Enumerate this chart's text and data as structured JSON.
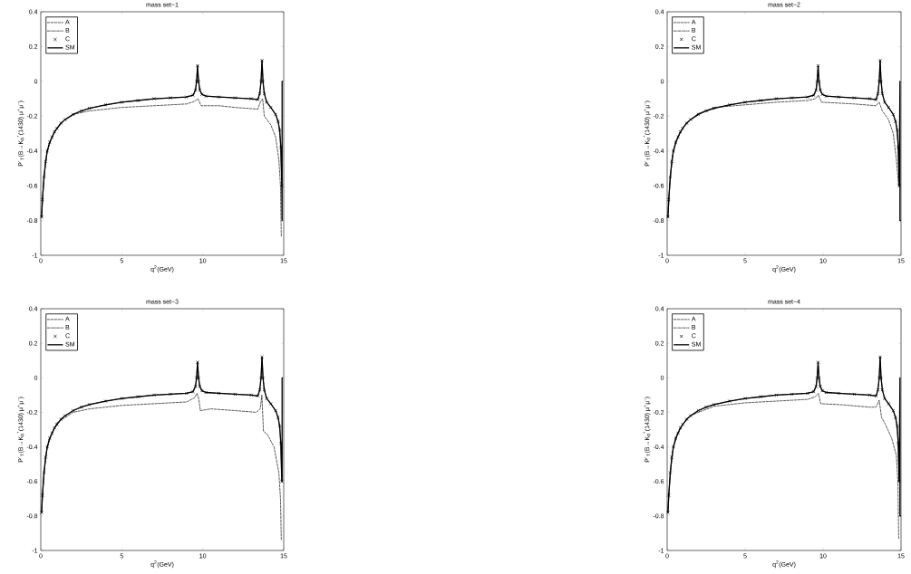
{
  "chart_data": [
    {
      "type": "line",
      "title": "mass set−1",
      "xlabel": "q$^{2}$(GeV)",
      "ylabel": "P$^{-}$$_{T}$(B→K$_{0}$$^{*}$(1430) μ$^{+}$μ$^{-}$)",
      "xlim": [
        0,
        15
      ],
      "ylim": [
        -1,
        0.4
      ],
      "xticks": [
        0,
        5,
        10,
        15
      ],
      "yticks": [
        -1,
        -0.8,
        -0.6,
        -0.4,
        -0.2,
        0,
        0.2,
        0.4
      ],
      "legend": "top left",
      "series": [
        {
          "name": "A",
          "type": "line",
          "line_style": "dashed",
          "color": "#000000",
          "x": [
            0.05,
            0.2,
            0.4,
            0.7,
            1,
            1.5,
            2,
            3,
            5,
            7,
            9,
            9.5,
            9.7,
            9.9,
            11,
            12,
            13.4,
            13.55,
            13.7,
            13.8,
            14.2,
            14.5,
            14.7,
            14.8,
            14.85
          ],
          "values": [
            -0.78,
            -0.55,
            -0.4,
            -0.32,
            -0.27,
            -0.22,
            -0.19,
            -0.17,
            -0.15,
            -0.14,
            -0.13,
            -0.115,
            -0.1,
            -0.14,
            -0.14,
            -0.15,
            -0.16,
            -0.12,
            -0.1,
            -0.2,
            -0.25,
            -0.32,
            -0.45,
            -0.6,
            -0.89
          ]
        },
        {
          "name": "B",
          "type": "line",
          "line_style": "dashdot",
          "color": "#000000",
          "x": [
            0.05,
            0.1,
            0.2,
            0.3,
            0.4,
            0.55,
            0.7,
            0.85,
            1,
            1.25,
            1.5,
            2,
            2.5,
            3,
            4,
            5,
            6,
            7,
            8,
            9,
            9.4,
            9.55,
            9.62,
            9.68,
            9.74,
            9.82,
            9.95,
            10.2,
            11,
            12,
            13,
            13.4,
            13.52,
            13.6,
            13.66,
            13.72,
            13.8,
            13.95,
            14.2,
            14.5,
            14.65,
            14.75,
            14.82,
            14.88
          ],
          "values": [
            -0.78,
            -0.68,
            -0.55,
            -0.46,
            -0.4,
            -0.35,
            -0.32,
            -0.29,
            -0.27,
            -0.24,
            -0.22,
            -0.19,
            -0.17,
            -0.155,
            -0.135,
            -0.12,
            -0.11,
            -0.1,
            -0.095,
            -0.09,
            -0.08,
            -0.05,
            0.0,
            0.09,
            0.0,
            -0.05,
            -0.075,
            -0.085,
            -0.09,
            -0.095,
            -0.1,
            -0.105,
            -0.07,
            0.0,
            0.12,
            0.0,
            -0.07,
            -0.12,
            -0.15,
            -0.19,
            -0.23,
            -0.28,
            -0.38,
            -0.6
          ]
        },
        {
          "name": "C",
          "type": "scatter",
          "marker": "cross",
          "color": "#000000",
          "x": [
            0.05,
            0.1,
            0.2,
            0.3,
            0.4,
            0.55,
            0.7,
            0.85,
            1,
            1.25,
            1.5,
            2,
            2.5,
            3,
            4,
            5,
            6,
            7,
            8,
            9,
            9.4,
            9.55,
            9.62,
            9.68,
            9.74,
            9.82,
            9.95,
            10.2,
            11,
            12,
            13,
            13.4,
            13.52,
            13.6,
            13.66,
            13.72,
            13.8,
            13.95,
            14.2,
            14.5,
            14.65,
            14.75,
            14.82,
            14.88
          ],
          "values": [
            -0.78,
            -0.68,
            -0.55,
            -0.46,
            -0.4,
            -0.35,
            -0.32,
            -0.29,
            -0.27,
            -0.24,
            -0.22,
            -0.19,
            -0.17,
            -0.155,
            -0.135,
            -0.12,
            -0.11,
            -0.1,
            -0.095,
            -0.09,
            -0.08,
            -0.05,
            0.0,
            0.09,
            0.0,
            -0.05,
            -0.075,
            -0.085,
            -0.09,
            -0.095,
            -0.1,
            -0.105,
            -0.07,
            0.0,
            0.12,
            0.0,
            -0.07,
            -0.12,
            -0.15,
            -0.19,
            -0.23,
            -0.28,
            -0.38,
            -0.6
          ]
        },
        {
          "name": "SM",
          "type": "line",
          "line_style": "solid",
          "color": "#000000",
          "x": [
            0.05,
            0.1,
            0.2,
            0.3,
            0.4,
            0.55,
            0.7,
            0.85,
            1,
            1.25,
            1.5,
            2,
            2.5,
            3,
            4,
            5,
            6,
            7,
            8,
            9,
            9.4,
            9.55,
            9.62,
            9.68,
            9.74,
            9.82,
            9.95,
            10.2,
            11,
            12,
            13,
            13.4,
            13.52,
            13.6,
            13.66,
            13.72,
            13.8,
            13.95,
            14.2,
            14.5,
            14.65,
            14.75,
            14.82,
            14.88,
            14.9,
            14.9,
            14.95
          ],
          "values": [
            -0.78,
            -0.68,
            -0.55,
            -0.46,
            -0.4,
            -0.35,
            -0.32,
            -0.29,
            -0.27,
            -0.24,
            -0.22,
            -0.19,
            -0.17,
            -0.155,
            -0.135,
            -0.12,
            -0.11,
            -0.1,
            -0.095,
            -0.09,
            -0.08,
            -0.05,
            0.0,
            0.09,
            0.0,
            -0.05,
            -0.075,
            -0.085,
            -0.09,
            -0.095,
            -0.1,
            -0.105,
            -0.07,
            0.0,
            0.12,
            0.0,
            -0.07,
            -0.12,
            -0.15,
            -0.19,
            -0.23,
            -0.28,
            -0.38,
            -0.6,
            -0.8,
            0,
            0
          ]
        }
      ]
    },
    {
      "type": "line",
      "title": "mass set−2",
      "xlabel": "q$^{2}$(GeV)",
      "ylabel": "P$^{-}$$_{T}$(B→K$_{0}$$^{*}$(1430) μ$^{+}$μ$^{-}$)",
      "xlim": [
        0,
        15
      ],
      "ylim": [
        -1,
        0.4
      ],
      "xticks": [
        0,
        5,
        10,
        15
      ],
      "yticks": [
        -1,
        -0.8,
        -0.6,
        -0.4,
        -0.2,
        0,
        0.2,
        0.4
      ],
      "legend": "top left",
      "series": [
        {
          "name": "A",
          "type": "line",
          "line_style": "dashed",
          "color": "#000000",
          "x": [
            0.05,
            0.2,
            0.4,
            0.7,
            1,
            1.5,
            2,
            3,
            5,
            7,
            9,
            9.5,
            9.7,
            9.9,
            11,
            12,
            13.4,
            13.6,
            13.8,
            14.2,
            14.5,
            14.7,
            14.85
          ],
          "values": [
            -0.78,
            -0.55,
            -0.4,
            -0.32,
            -0.27,
            -0.22,
            -0.185,
            -0.15,
            -0.135,
            -0.12,
            -0.11,
            -0.1,
            -0.08,
            -0.12,
            -0.125,
            -0.13,
            -0.14,
            -0.12,
            -0.17,
            -0.22,
            -0.3,
            -0.45,
            -0.6
          ]
        },
        {
          "name": "B",
          "type": "line",
          "line_style": "dashdot",
          "color": "#000000",
          "x": [
            0.05,
            0.1,
            0.2,
            0.3,
            0.4,
            0.55,
            0.7,
            0.85,
            1,
            1.25,
            1.5,
            2,
            2.5,
            3,
            4,
            5,
            6,
            7,
            8,
            9,
            9.4,
            9.55,
            9.62,
            9.68,
            9.74,
            9.82,
            9.95,
            10.2,
            11,
            12,
            13,
            13.4,
            13.52,
            13.6,
            13.66,
            13.72,
            13.8,
            13.95,
            14.2,
            14.5,
            14.65,
            14.75,
            14.82,
            14.88
          ],
          "values": [
            -0.78,
            -0.68,
            -0.55,
            -0.46,
            -0.4,
            -0.35,
            -0.32,
            -0.29,
            -0.27,
            -0.24,
            -0.22,
            -0.19,
            -0.17,
            -0.155,
            -0.135,
            -0.12,
            -0.11,
            -0.1,
            -0.095,
            -0.09,
            -0.08,
            -0.05,
            0.0,
            0.09,
            0.0,
            -0.05,
            -0.075,
            -0.085,
            -0.09,
            -0.095,
            -0.1,
            -0.105,
            -0.07,
            0.0,
            0.12,
            0.0,
            -0.07,
            -0.12,
            -0.15,
            -0.19,
            -0.23,
            -0.28,
            -0.38,
            -0.6
          ]
        },
        {
          "name": "C",
          "type": "scatter",
          "marker": "cross",
          "color": "#000000",
          "x": [
            0.05,
            0.1,
            0.2,
            0.3,
            0.4,
            0.55,
            0.7,
            0.85,
            1,
            1.25,
            1.5,
            2,
            2.5,
            3,
            4,
            5,
            6,
            7,
            8,
            9,
            9.4,
            9.55,
            9.62,
            9.68,
            9.74,
            9.82,
            9.95,
            10.2,
            11,
            12,
            13,
            13.4,
            13.52,
            13.6,
            13.66,
            13.72,
            13.8,
            13.95,
            14.2,
            14.5,
            14.65,
            14.75,
            14.82,
            14.88
          ],
          "values": [
            -0.78,
            -0.68,
            -0.55,
            -0.46,
            -0.4,
            -0.35,
            -0.32,
            -0.29,
            -0.27,
            -0.24,
            -0.22,
            -0.19,
            -0.17,
            -0.155,
            -0.135,
            -0.12,
            -0.11,
            -0.1,
            -0.095,
            -0.09,
            -0.08,
            -0.05,
            0.0,
            0.09,
            0.0,
            -0.05,
            -0.075,
            -0.085,
            -0.09,
            -0.095,
            -0.1,
            -0.105,
            -0.07,
            0.0,
            0.12,
            0.0,
            -0.07,
            -0.12,
            -0.15,
            -0.19,
            -0.23,
            -0.28,
            -0.38,
            -0.6
          ]
        },
        {
          "name": "SM",
          "type": "line",
          "line_style": "solid",
          "color": "#000000",
          "x": [
            0.05,
            0.1,
            0.2,
            0.3,
            0.4,
            0.55,
            0.7,
            0.85,
            1,
            1.25,
            1.5,
            2,
            2.5,
            3,
            4,
            5,
            6,
            7,
            8,
            9,
            9.4,
            9.55,
            9.62,
            9.68,
            9.74,
            9.82,
            9.95,
            10.2,
            11,
            12,
            13,
            13.4,
            13.52,
            13.6,
            13.66,
            13.72,
            13.8,
            13.95,
            14.2,
            14.5,
            14.65,
            14.75,
            14.82,
            14.88,
            14.93,
            14.93,
            15
          ],
          "values": [
            -0.78,
            -0.68,
            -0.55,
            -0.46,
            -0.4,
            -0.35,
            -0.32,
            -0.29,
            -0.27,
            -0.24,
            -0.22,
            -0.19,
            -0.17,
            -0.155,
            -0.135,
            -0.12,
            -0.11,
            -0.1,
            -0.095,
            -0.09,
            -0.08,
            -0.05,
            0.0,
            0.09,
            0.0,
            -0.05,
            -0.075,
            -0.085,
            -0.09,
            -0.095,
            -0.1,
            -0.105,
            -0.07,
            0.0,
            0.12,
            0.0,
            -0.07,
            -0.12,
            -0.15,
            -0.19,
            -0.23,
            -0.28,
            -0.38,
            -0.6,
            0,
            -0.8,
            -0.8
          ]
        }
      ]
    },
    {
      "type": "line",
      "title": "mass set−3",
      "xlabel": "q$^{2}$(GeV)",
      "ylabel": "P$^{-}$$_{T}$(B→K$_{0}$$^{*}$(1430) μ$^{+}$μ$^{-}$)",
      "xlim": [
        0,
        15
      ],
      "ylim": [
        -1,
        0.4
      ],
      "xticks": [
        0,
        5,
        10,
        15
      ],
      "yticks": [
        -1,
        -0.8,
        -0.6,
        -0.4,
        -0.2,
        0,
        0.2,
        0.4
      ],
      "legend": "top left",
      "series": [
        {
          "name": "A",
          "type": "line",
          "line_style": "dashed",
          "color": "#000000",
          "x": [
            0.05,
            0.2,
            0.4,
            0.7,
            1,
            1.5,
            2,
            3,
            5,
            7,
            9,
            9.5,
            9.65,
            9.75,
            9.85,
            10.5,
            12,
            13.3,
            13.55,
            13.65,
            13.75,
            14,
            14.4,
            14.7,
            14.8,
            14.85
          ],
          "values": [
            -0.78,
            -0.55,
            -0.4,
            -0.32,
            -0.26,
            -0.23,
            -0.2,
            -0.18,
            -0.16,
            -0.15,
            -0.14,
            -0.115,
            -0.09,
            -0.12,
            -0.19,
            -0.18,
            -0.19,
            -0.2,
            -0.18,
            -0.1,
            -0.31,
            -0.33,
            -0.4,
            -0.55,
            -0.7,
            -0.94
          ]
        },
        {
          "name": "B",
          "type": "line",
          "line_style": "dashdot",
          "color": "#000000",
          "x": [
            0.05,
            0.1,
            0.2,
            0.3,
            0.4,
            0.55,
            0.7,
            0.85,
            1,
            1.25,
            1.5,
            2,
            2.5,
            3,
            4,
            5,
            6,
            7,
            8,
            9,
            9.4,
            9.55,
            9.62,
            9.68,
            9.74,
            9.82,
            9.95,
            10.2,
            11,
            12,
            13,
            13.4,
            13.52,
            13.6,
            13.66,
            13.72,
            13.8,
            13.95,
            14.2,
            14.5,
            14.65,
            14.75,
            14.82,
            14.88
          ],
          "values": [
            -0.78,
            -0.68,
            -0.55,
            -0.46,
            -0.4,
            -0.35,
            -0.32,
            -0.29,
            -0.27,
            -0.24,
            -0.22,
            -0.19,
            -0.17,
            -0.155,
            -0.135,
            -0.12,
            -0.11,
            -0.1,
            -0.095,
            -0.09,
            -0.08,
            -0.05,
            0.0,
            0.09,
            0.0,
            -0.05,
            -0.075,
            -0.085,
            -0.09,
            -0.095,
            -0.1,
            -0.105,
            -0.07,
            0.0,
            0.12,
            0.0,
            -0.07,
            -0.12,
            -0.15,
            -0.19,
            -0.23,
            -0.28,
            -0.38,
            -0.6
          ]
        },
        {
          "name": "C",
          "type": "scatter",
          "marker": "cross",
          "color": "#000000",
          "x": [
            0.05,
            0.1,
            0.2,
            0.3,
            0.4,
            0.55,
            0.7,
            0.85,
            1,
            1.25,
            1.5,
            2,
            2.5,
            3,
            4,
            5,
            6,
            7,
            8,
            9,
            9.4,
            9.55,
            9.62,
            9.68,
            9.74,
            9.82,
            9.95,
            10.2,
            11,
            12,
            13,
            13.4,
            13.52,
            13.6,
            13.66,
            13.72,
            13.8,
            13.95,
            14.2,
            14.5,
            14.65,
            14.75,
            14.82,
            14.88
          ],
          "values": [
            -0.78,
            -0.68,
            -0.55,
            -0.46,
            -0.4,
            -0.35,
            -0.32,
            -0.29,
            -0.27,
            -0.24,
            -0.22,
            -0.19,
            -0.17,
            -0.155,
            -0.135,
            -0.12,
            -0.11,
            -0.1,
            -0.095,
            -0.09,
            -0.08,
            -0.05,
            0.0,
            0.09,
            0.0,
            -0.05,
            -0.075,
            -0.085,
            -0.09,
            -0.095,
            -0.1,
            -0.105,
            -0.07,
            0.0,
            0.12,
            0.0,
            -0.07,
            -0.12,
            -0.15,
            -0.19,
            -0.23,
            -0.28,
            -0.38,
            -0.6
          ]
        },
        {
          "name": "SM",
          "type": "line",
          "line_style": "solid",
          "color": "#000000",
          "x": [
            0.05,
            0.1,
            0.2,
            0.3,
            0.4,
            0.55,
            0.7,
            0.85,
            1,
            1.25,
            1.5,
            2,
            2.5,
            3,
            4,
            5,
            6,
            7,
            8,
            9,
            9.4,
            9.55,
            9.62,
            9.68,
            9.74,
            9.82,
            9.95,
            10.2,
            11,
            12,
            13,
            13.4,
            13.52,
            13.6,
            13.66,
            13.72,
            13.8,
            13.95,
            14.2,
            14.5,
            14.65,
            14.75,
            14.82,
            14.88,
            14.9,
            14.9,
            14.95
          ],
          "values": [
            -0.78,
            -0.68,
            -0.55,
            -0.46,
            -0.4,
            -0.35,
            -0.32,
            -0.29,
            -0.27,
            -0.24,
            -0.22,
            -0.19,
            -0.17,
            -0.155,
            -0.135,
            -0.12,
            -0.11,
            -0.1,
            -0.095,
            -0.09,
            -0.08,
            -0.05,
            0.0,
            0.09,
            0.0,
            -0.05,
            -0.075,
            -0.085,
            -0.09,
            -0.095,
            -0.1,
            -0.105,
            -0.07,
            0.0,
            0.12,
            0.0,
            -0.07,
            -0.12,
            -0.15,
            -0.19,
            -0.23,
            -0.28,
            -0.38,
            -0.6,
            -0.6,
            0,
            0
          ]
        }
      ]
    },
    {
      "type": "line",
      "title": "mass set−4",
      "xlabel": "q$^{2}$(GeV)",
      "ylabel": "P$^{-}$$_{T}$(B→K$_{0}$$^{*}$(1430) μ$^{+}$μ$^{-}$)",
      "xlim": [
        0,
        15
      ],
      "ylim": [
        -1,
        0.4
      ],
      "xticks": [
        0,
        5,
        10,
        15
      ],
      "yticks": [
        -1,
        -0.8,
        -0.6,
        -0.4,
        -0.2,
        0,
        0.2,
        0.4
      ],
      "legend": "top left",
      "series": [
        {
          "name": "A",
          "type": "line",
          "line_style": "dashed",
          "color": "#000000",
          "x": [
            0.05,
            0.2,
            0.4,
            0.7,
            1,
            1.5,
            2,
            3,
            5,
            7,
            9,
            9.5,
            9.7,
            9.85,
            11,
            13,
            13.4,
            13.6,
            13.75,
            14,
            14.4,
            14.7,
            14.8,
            14.85
          ],
          "values": [
            -0.78,
            -0.55,
            -0.4,
            -0.32,
            -0.27,
            -0.22,
            -0.2,
            -0.165,
            -0.145,
            -0.135,
            -0.125,
            -0.11,
            -0.09,
            -0.15,
            -0.155,
            -0.17,
            -0.17,
            -0.13,
            -0.23,
            -0.27,
            -0.35,
            -0.45,
            -0.6,
            -0.93
          ]
        },
        {
          "name": "B",
          "type": "line",
          "line_style": "dashdot",
          "color": "#000000",
          "x": [
            0.05,
            0.1,
            0.2,
            0.3,
            0.4,
            0.55,
            0.7,
            0.85,
            1,
            1.25,
            1.5,
            2,
            2.5,
            3,
            4,
            5,
            6,
            7,
            8,
            9,
            9.4,
            9.55,
            9.62,
            9.68,
            9.74,
            9.82,
            9.95,
            10.2,
            11,
            12,
            13,
            13.4,
            13.52,
            13.6,
            13.66,
            13.72,
            13.8,
            13.95,
            14.2,
            14.5,
            14.65,
            14.75,
            14.82,
            14.88
          ],
          "values": [
            -0.78,
            -0.68,
            -0.55,
            -0.46,
            -0.4,
            -0.35,
            -0.32,
            -0.29,
            -0.27,
            -0.24,
            -0.22,
            -0.19,
            -0.17,
            -0.155,
            -0.135,
            -0.12,
            -0.11,
            -0.1,
            -0.095,
            -0.09,
            -0.08,
            -0.05,
            0.0,
            0.09,
            0.0,
            -0.05,
            -0.075,
            -0.085,
            -0.09,
            -0.095,
            -0.1,
            -0.105,
            -0.07,
            0.0,
            0.12,
            0.0,
            -0.07,
            -0.12,
            -0.15,
            -0.19,
            -0.23,
            -0.28,
            -0.38,
            -0.6
          ]
        },
        {
          "name": "C",
          "type": "scatter",
          "marker": "cross",
          "color": "#000000",
          "x": [
            0.05,
            0.1,
            0.2,
            0.3,
            0.4,
            0.55,
            0.7,
            0.85,
            1,
            1.25,
            1.5,
            2,
            2.5,
            3,
            4,
            5,
            6,
            7,
            8,
            9,
            9.4,
            9.55,
            9.62,
            9.68,
            9.74,
            9.82,
            9.95,
            10.2,
            11,
            12,
            13,
            13.4,
            13.52,
            13.6,
            13.66,
            13.72,
            13.8,
            13.95,
            14.2,
            14.5,
            14.65,
            14.75,
            14.82,
            14.88
          ],
          "values": [
            -0.78,
            -0.68,
            -0.55,
            -0.46,
            -0.4,
            -0.35,
            -0.32,
            -0.29,
            -0.27,
            -0.24,
            -0.22,
            -0.19,
            -0.17,
            -0.155,
            -0.135,
            -0.12,
            -0.11,
            -0.1,
            -0.095,
            -0.09,
            -0.08,
            -0.05,
            0.0,
            0.09,
            0.0,
            -0.05,
            -0.075,
            -0.085,
            -0.09,
            -0.095,
            -0.1,
            -0.105,
            -0.07,
            0.0,
            0.12,
            0.0,
            -0.07,
            -0.12,
            -0.15,
            -0.19,
            -0.23,
            -0.28,
            -0.38,
            -0.6
          ]
        },
        {
          "name": "SM",
          "type": "line",
          "line_style": "solid",
          "color": "#000000",
          "x": [
            0.05,
            0.1,
            0.2,
            0.3,
            0.4,
            0.55,
            0.7,
            0.85,
            1,
            1.25,
            1.5,
            2,
            2.5,
            3,
            4,
            5,
            6,
            7,
            8,
            9,
            9.4,
            9.55,
            9.62,
            9.68,
            9.74,
            9.82,
            9.95,
            10.2,
            11,
            12,
            13,
            13.4,
            13.52,
            13.6,
            13.66,
            13.72,
            13.8,
            13.95,
            14.2,
            14.5,
            14.65,
            14.75,
            14.82,
            14.88,
            14.93,
            14.93,
            15
          ],
          "values": [
            -0.78,
            -0.68,
            -0.55,
            -0.46,
            -0.4,
            -0.35,
            -0.32,
            -0.29,
            -0.27,
            -0.24,
            -0.22,
            -0.19,
            -0.17,
            -0.155,
            -0.135,
            -0.12,
            -0.11,
            -0.1,
            -0.095,
            -0.09,
            -0.08,
            -0.05,
            0.0,
            0.09,
            0.0,
            -0.05,
            -0.075,
            -0.085,
            -0.09,
            -0.095,
            -0.1,
            -0.105,
            -0.07,
            0.0,
            0.12,
            0.0,
            -0.07,
            -0.12,
            -0.15,
            -0.19,
            -0.23,
            -0.28,
            -0.38,
            -0.6,
            0,
            -0.8,
            -0.8
          ]
        }
      ]
    }
  ]
}
